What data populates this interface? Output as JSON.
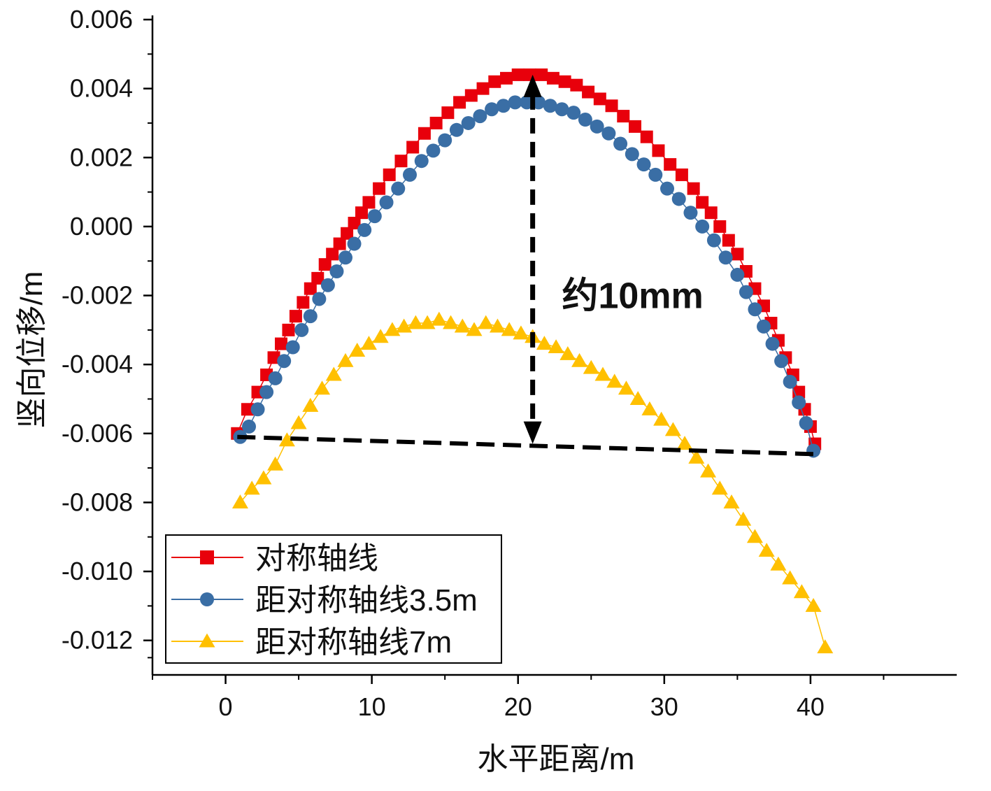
{
  "chart_data": {
    "type": "scatter",
    "title": "",
    "xlabel": "水平距离/m",
    "ylabel": "竖向位移/m",
    "xlim": [
      -5,
      50
    ],
    "ylim": [
      -0.013,
      0.006
    ],
    "xticks": [
      0,
      10,
      20,
      30,
      40
    ],
    "xtick_labels": [
      "0",
      "10",
      "20",
      "30",
      "40"
    ],
    "yticks": [
      0.006,
      0.004,
      0.002,
      0.0,
      -0.002,
      -0.004,
      -0.006,
      -0.008,
      -0.01,
      -0.012
    ],
    "ytick_labels": [
      "0.006",
      "0.004",
      "0.002",
      "0.000",
      "-0.002",
      "-0.004",
      "-0.006",
      "-0.008",
      "-0.010",
      "-0.012"
    ],
    "legend_position": "bottom-left",
    "series": [
      {
        "name": "对称轴线",
        "marker": "square",
        "color": "#e8000b",
        "x": [
          0.8,
          1.5,
          2.2,
          2.8,
          3.3,
          3.8,
          4.3,
          4.8,
          5.3,
          5.8,
          6.3,
          6.8,
          7.3,
          7.8,
          8.3,
          8.8,
          9.3,
          9.8,
          10.5,
          11.2,
          12,
          12.8,
          13.6,
          14.4,
          15.2,
          16,
          16.8,
          17.6,
          18.4,
          19.2,
          20,
          20.8,
          21.6,
          22.4,
          23.2,
          24,
          24.8,
          25.6,
          26.4,
          27.2,
          28,
          28.8,
          29.6,
          30.4,
          31.2,
          32,
          32.6,
          33.2,
          33.8,
          34.4,
          35,
          35.6,
          36.2,
          36.8,
          37.3,
          37.8,
          38.3,
          38.8,
          39.2,
          39.6,
          40.0,
          40.3
        ],
        "y": [
          -0.006,
          -0.0053,
          -0.0048,
          -0.0043,
          -0.0038,
          -0.0034,
          -0.003,
          -0.0026,
          -0.0022,
          -0.0018,
          -0.0015,
          -0.0011,
          -0.0008,
          -0.0005,
          -0.0002,
          0.0001,
          0.0004,
          0.0007,
          0.0011,
          0.0015,
          0.0019,
          0.0023,
          0.0027,
          0.003,
          0.0033,
          0.0036,
          0.0038,
          0.004,
          0.0042,
          0.0043,
          0.0044,
          0.0044,
          0.0044,
          0.0043,
          0.0042,
          0.0041,
          0.0039,
          0.0037,
          0.0035,
          0.0032,
          0.0029,
          0.0026,
          0.0022,
          0.0018,
          0.0015,
          0.0011,
          0.0007,
          0.0004,
          0.0,
          -0.0004,
          -0.0008,
          -0.0013,
          -0.0018,
          -0.0023,
          -0.0028,
          -0.0033,
          -0.0038,
          -0.0043,
          -0.0048,
          -0.0053,
          -0.0058,
          -0.0063
        ]
      },
      {
        "name": "距对称轴线3.5m",
        "marker": "circle",
        "color": "#3a6ea5",
        "x": [
          1.0,
          1.6,
          2.2,
          2.8,
          3.4,
          4.0,
          4.6,
          5.2,
          5.8,
          6.4,
          7.0,
          7.6,
          8.2,
          8.8,
          9.5,
          10.2,
          11,
          11.8,
          12.6,
          13.4,
          14.2,
          15,
          15.8,
          16.6,
          17.4,
          18.2,
          19,
          19.8,
          20.6,
          21.4,
          22.2,
          23,
          23.8,
          24.6,
          25.4,
          26.2,
          27,
          27.8,
          28.6,
          29.4,
          30.2,
          31,
          31.8,
          32.6,
          33.4,
          34.2,
          35,
          35.6,
          36.2,
          36.8,
          37.4,
          38,
          38.6,
          39.2,
          39.7,
          40.2
        ],
        "y": [
          -0.0061,
          -0.0058,
          -0.0053,
          -0.0048,
          -0.0044,
          -0.0039,
          -0.0035,
          -0.003,
          -0.0026,
          -0.0021,
          -0.0017,
          -0.0013,
          -0.0009,
          -0.0005,
          -0.0001,
          0.0003,
          0.0007,
          0.0011,
          0.0015,
          0.0019,
          0.0022,
          0.0025,
          0.0028,
          0.003,
          0.0032,
          0.0034,
          0.0035,
          0.0036,
          0.0036,
          0.0036,
          0.0035,
          0.0034,
          0.0033,
          0.0031,
          0.0029,
          0.0027,
          0.0024,
          0.0021,
          0.0018,
          0.0015,
          0.0011,
          0.0008,
          0.0004,
          0.0,
          -0.0004,
          -0.0009,
          -0.0014,
          -0.0019,
          -0.0024,
          -0.0029,
          -0.0034,
          -0.0039,
          -0.0045,
          -0.0051,
          -0.0057,
          -0.0065
        ]
      },
      {
        "name": "距对称轴线7m",
        "marker": "triangle",
        "color": "#ffc000",
        "x": [
          1.0,
          1.8,
          2.6,
          3.4,
          4.2,
          5.0,
          5.8,
          6.6,
          7.4,
          8.2,
          9.0,
          9.8,
          10.6,
          11.4,
          12.2,
          13,
          13.8,
          14.6,
          15.4,
          16.2,
          17,
          17.8,
          18.6,
          19.4,
          20.2,
          21,
          21.8,
          22.6,
          23.4,
          24.2,
          25,
          25.8,
          26.6,
          27.4,
          28.2,
          29,
          29.8,
          30.6,
          31.4,
          32.2,
          33,
          33.8,
          34.6,
          35.4,
          36.2,
          37,
          37.8,
          38.6,
          39.4,
          40.2,
          41.0
        ],
        "y": [
          -0.008,
          -0.0076,
          -0.0073,
          -0.0069,
          -0.0062,
          -0.0057,
          -0.0052,
          -0.0047,
          -0.0043,
          -0.0039,
          -0.0036,
          -0.0034,
          -0.0032,
          -0.003,
          -0.0029,
          -0.0028,
          -0.0028,
          -0.0027,
          -0.0028,
          -0.0029,
          -0.003,
          -0.0028,
          -0.0029,
          -0.003,
          -0.0031,
          -0.0032,
          -0.0034,
          -0.0035,
          -0.0037,
          -0.0039,
          -0.0041,
          -0.0043,
          -0.0045,
          -0.0047,
          -0.005,
          -0.0053,
          -0.0056,
          -0.0059,
          -0.0063,
          -0.0067,
          -0.0071,
          -0.0076,
          -0.008,
          -0.0085,
          -0.009,
          -0.0094,
          -0.0098,
          -0.0102,
          -0.0106,
          -0.011,
          -0.0122
        ]
      }
    ],
    "annotations": [
      {
        "type": "dashed-line",
        "from": [
          0.8,
          -0.0061
        ],
        "to": [
          40.3,
          -0.0066
        ]
      },
      {
        "type": "double-arrow-dashed",
        "from": [
          21,
          0.0044
        ],
        "to": [
          21,
          -0.0063
        ]
      },
      {
        "type": "text",
        "text": "约10mm",
        "at": [
          23,
          -0.002
        ]
      }
    ]
  },
  "legend": {
    "entries": [
      "对称轴线",
      "距对称轴线3.5m",
      "距对称轴线7m"
    ]
  },
  "labels": {
    "annotation_text": "约10mm"
  }
}
